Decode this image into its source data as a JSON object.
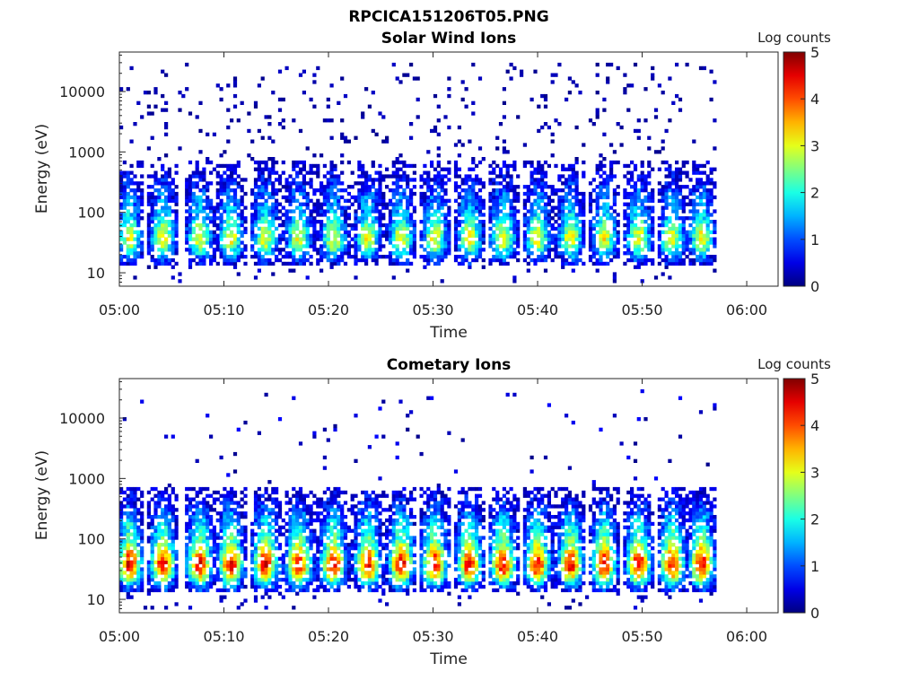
{
  "figure": {
    "title": "RPCICA151206T05.PNG"
  },
  "colormap": "jet",
  "chart_data": [
    {
      "type": "heatmap",
      "title": "Solar Wind Ions",
      "xlabel": "Time",
      "ylabel": "Energy (eV)",
      "x_ticks": [
        "05:00",
        "05:10",
        "05:20",
        "05:30",
        "05:40",
        "05:50",
        "06:00"
      ],
      "x_range": [
        "05:00",
        "06:03"
      ],
      "y_ticks": [
        "10",
        "100",
        "1000",
        "10000"
      ],
      "y_scale": "log",
      "y_range": [
        6,
        45000
      ],
      "colorbar": {
        "label": "Log counts",
        "ticks": [
          "0",
          "1",
          "2",
          "3",
          "4",
          "5"
        ],
        "range": [
          0,
          5
        ]
      },
      "data_extent_minutes": [
        0,
        57
      ],
      "burst_minutes": [
        0.8,
        4,
        7.5,
        10.5,
        13.8,
        17,
        20.3,
        23.6,
        26.8,
        30,
        33.3,
        36.5,
        39.8,
        43,
        46.2,
        49.5,
        52.7,
        55.5
      ],
      "burst_peak_log_counts": 2.5,
      "core_energy_eV": [
        25,
        45
      ],
      "sparse_high_energy_log_counts": 0.3
    },
    {
      "type": "heatmap",
      "title": "Cometary Ions",
      "xlabel": "Time",
      "ylabel": "Energy (eV)",
      "x_ticks": [
        "05:00",
        "05:10",
        "05:20",
        "05:30",
        "05:40",
        "05:50",
        "06:00"
      ],
      "x_range": [
        "05:00",
        "06:03"
      ],
      "y_ticks": [
        "10",
        "100",
        "1000",
        "10000"
      ],
      "y_scale": "log",
      "y_range": [
        6,
        45000
      ],
      "colorbar": {
        "label": "Log counts",
        "ticks": [
          "0",
          "1",
          "2",
          "3",
          "4",
          "5"
        ],
        "range": [
          0,
          5
        ]
      },
      "data_extent_minutes": [
        0,
        57
      ],
      "burst_minutes": [
        0.8,
        4,
        7.5,
        10.5,
        13.8,
        17,
        20.3,
        23.6,
        26.8,
        30,
        33.3,
        36.5,
        39.8,
        43,
        46.2,
        49.5,
        52.7,
        55.5
      ],
      "burst_peak_log_counts": 3.6,
      "core_energy_eV": [
        25,
        50
      ],
      "sparse_high_energy_log_counts": 0.6
    }
  ]
}
